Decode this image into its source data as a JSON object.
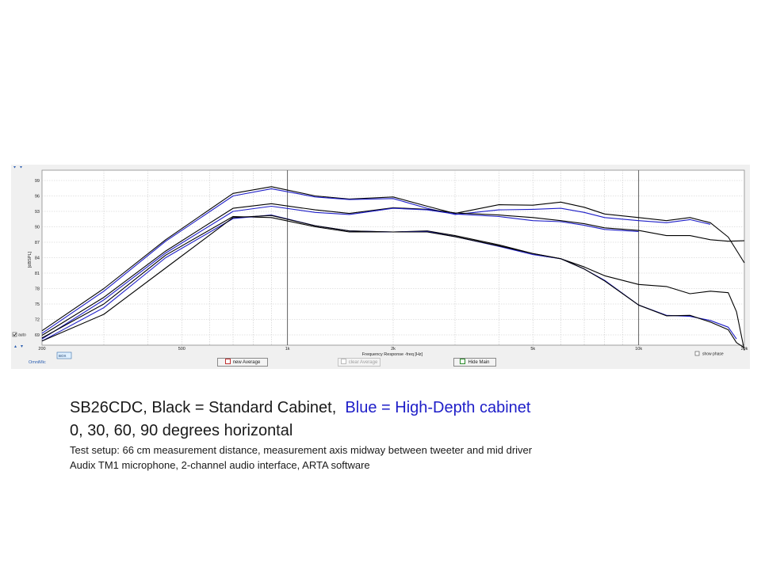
{
  "window": {
    "auto_label": "auto",
    "omnimic_label": "OmniMic",
    "legend_box_label": "BOX",
    "show_phase_label": "show phase",
    "new_average_label": "new Average",
    "clear_average_label": "clear Average",
    "hide_main_label": "Hide Main",
    "colors": {
      "panel": "#f0f0f0",
      "plot_bg": "#ffffff",
      "grid": "#c8c8c8",
      "decade": "#505050",
      "black_trace": "#000000",
      "blue_trace": "#1e1ec8"
    }
  },
  "caption": {
    "line1_black": "SB26CDC, Black = Standard Cabinet,",
    "line1_blue": "Blue = High-Depth cabinet",
    "line2": "0, 30, 60, 90 degrees horizontal",
    "line3": "Test setup:  66 cm measurement distance, measurement  axis midway between tweeter and mid driver",
    "line4": "Audix TM1 microphone,  2-channel audio interface, ARTA software"
  },
  "chart_data": {
    "type": "line",
    "xlabel": "Frequency Response -freq [Hz]",
    "ylabel": "[dBSPL]",
    "x_scale": "log",
    "xlim": [
      200,
      20000
    ],
    "ylim": [
      67,
      101
    ],
    "x_tick_labels": [
      {
        "x": 200,
        "label": "200"
      },
      {
        "x": 500,
        "label": "500"
      },
      {
        "x": 1000,
        "label": "1k"
      },
      {
        "x": 2000,
        "label": "2k"
      },
      {
        "x": 5000,
        "label": "5k"
      },
      {
        "x": 10000,
        "label": "10k"
      },
      {
        "x": 20000,
        "label": "20k"
      }
    ],
    "y_ticks": [
      69,
      72,
      75,
      78,
      81,
      84,
      87,
      90,
      93,
      96,
      99
    ],
    "grid": true,
    "series": [
      {
        "color": "black",
        "x": [
          200,
          300,
          450,
          700,
          900,
          1200,
          1500,
          2000,
          2500,
          3000,
          4000,
          5000,
          6000,
          7000,
          8000,
          10000,
          12000,
          14000,
          16000,
          18000,
          20000
        ],
        "y": [
          69.8,
          78,
          87.5,
          96.5,
          97.8,
          96,
          95.4,
          95.8,
          94,
          92.6,
          94.3,
          94.2,
          94.8,
          93.8,
          92.5,
          91.8,
          91.2,
          91.8,
          90.8,
          88,
          83
        ]
      },
      {
        "color": "blue",
        "x": [
          200,
          300,
          450,
          700,
          900,
          1200,
          1500,
          2000,
          2500,
          3000,
          4000,
          5000,
          6000,
          7000,
          8000,
          10000,
          12000,
          14000,
          16000
        ],
        "y": [
          69.3,
          77.5,
          87.2,
          96,
          97.4,
          95.8,
          95.3,
          95.5,
          93.6,
          92.4,
          93.3,
          93.4,
          93.6,
          92.8,
          91.8,
          91.2,
          90.8,
          91.4,
          90.5
        ]
      },
      {
        "color": "black",
        "x": [
          200,
          300,
          450,
          700,
          900,
          1200,
          1500,
          2000,
          2500,
          3000,
          4000,
          5000,
          6000,
          7000,
          8000,
          10000,
          12000,
          14000,
          16000,
          18000,
          20000
        ],
        "y": [
          68.9,
          76.3,
          85.3,
          93.6,
          94.5,
          93.3,
          92.6,
          93.7,
          93.4,
          92.7,
          92.3,
          91.8,
          91.2,
          90.6,
          89.8,
          89.3,
          88.3,
          88.3,
          87.5,
          87.2,
          87.3
        ]
      },
      {
        "color": "blue",
        "x": [
          200,
          300,
          450,
          700,
          900,
          1200,
          1500,
          2000,
          2500,
          3000,
          4000,
          5000,
          6000,
          7000,
          8000,
          10000
        ],
        "y": [
          68.2,
          75.8,
          84.9,
          93,
          94,
          92.8,
          92.4,
          93.6,
          93.3,
          92.5,
          92,
          91.2,
          91,
          90.3,
          89.5,
          89.1
        ]
      },
      {
        "color": "black",
        "x": [
          200,
          300,
          450,
          700,
          900,
          1200,
          1500,
          2000,
          2500,
          3000,
          4000,
          5000,
          6000,
          7000,
          8000,
          10000,
          12000,
          14000,
          16000,
          18000,
          19000,
          20000
        ],
        "y": [
          68.4,
          75,
          84.5,
          92,
          91.8,
          90,
          89,
          89,
          89.2,
          88.3,
          86.5,
          84.8,
          83.8,
          82.2,
          80.5,
          78.8,
          78.4,
          77,
          77.5,
          77.2,
          73.5,
          66
        ]
      },
      {
        "color": "blue",
        "x": [
          200,
          300,
          450,
          700,
          900,
          1200,
          1500,
          2000,
          2500,
          3000,
          4000,
          5000,
          6000,
          7000,
          8000,
          10000,
          12000,
          14000,
          16000,
          18000,
          19000
        ],
        "y": [
          67.8,
          74.3,
          84,
          91.6,
          92.3,
          90.2,
          89.2,
          89,
          89.1,
          88.1,
          86.2,
          84.6,
          83.8,
          81.8,
          79.6,
          74.8,
          72.8,
          72.6,
          71.8,
          70.5,
          68.2
        ]
      },
      {
        "color": "black",
        "x": [
          200,
          300,
          450,
          700,
          900,
          1200,
          1500,
          2000,
          2500,
          3000,
          4000,
          5000,
          6000,
          7000,
          8000,
          10000,
          12000,
          14000,
          16000,
          18000,
          19000,
          20000
        ],
        "y": [
          67.8,
          73,
          82,
          91.8,
          92.2,
          90.2,
          89.2,
          89,
          89,
          88.1,
          86.3,
          84.8,
          83.8,
          81.8,
          79.5,
          74.8,
          72.7,
          72.8,
          71.5,
          70,
          67.5,
          66.5
        ]
      }
    ]
  }
}
